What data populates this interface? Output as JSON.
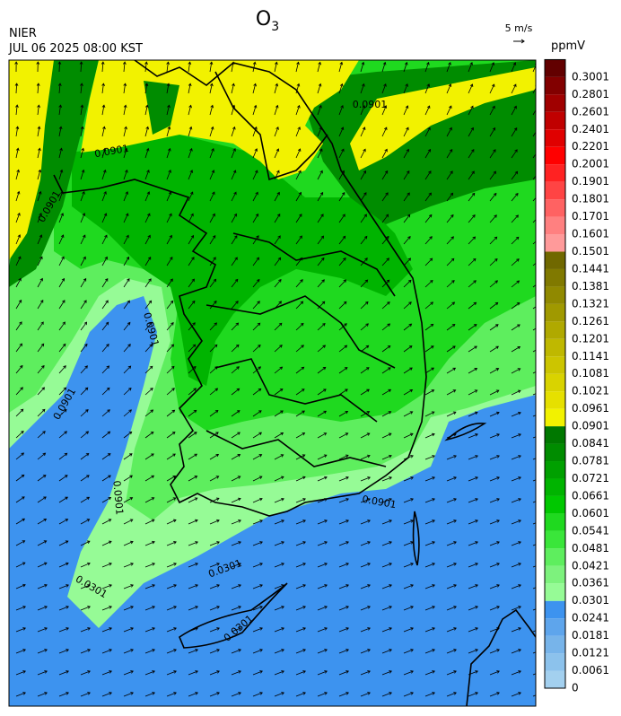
{
  "header": {
    "title": {
      "main": "O",
      "sub": "3"
    },
    "agency": "NIER",
    "datetime": "JUL 06 2025 08:00 KST"
  },
  "wind_key": {
    "label": "5 m/s"
  },
  "colorbar": {
    "unit": "ppmV",
    "levels": [
      {
        "label": "0",
        "color": "#a3d0ef"
      },
      {
        "label": "0.0061",
        "color": "#8cc2ec"
      },
      {
        "label": "0.0121",
        "color": "#77b4ea"
      },
      {
        "label": "0.0181",
        "color": "#5ea5ec"
      },
      {
        "label": "0.0241",
        "color": "#3d93ef"
      },
      {
        "label": "0.0301",
        "color": "#96fb96"
      },
      {
        "label": "0.0361",
        "color": "#7df27d"
      },
      {
        "label": "0.0421",
        "color": "#5eee5e"
      },
      {
        "label": "0.0481",
        "color": "#3ae63a"
      },
      {
        "label": "0.0541",
        "color": "#1fd91f"
      },
      {
        "label": "0.0601",
        "color": "#00c800"
      },
      {
        "label": "0.0661",
        "color": "#00b400"
      },
      {
        "label": "0.0721",
        "color": "#00a000"
      },
      {
        "label": "0.0781",
        "color": "#008c00"
      },
      {
        "label": "0.0841",
        "color": "#007800"
      },
      {
        "label": "0.0901",
        "color": "#f2f200"
      },
      {
        "label": "0.0961",
        "color": "#e6e000"
      },
      {
        "label": "0.1021",
        "color": "#d9d300"
      },
      {
        "label": "0.1081",
        "color": "#ccc500"
      },
      {
        "label": "0.1141",
        "color": "#bfb800"
      },
      {
        "label": "0.1201",
        "color": "#b0a900"
      },
      {
        "label": "0.1261",
        "color": "#a09900"
      },
      {
        "label": "0.1321",
        "color": "#908900"
      },
      {
        "label": "0.1381",
        "color": "#807900"
      },
      {
        "label": "0.1441",
        "color": "#706800"
      },
      {
        "label": "0.1501",
        "color": "#ff9a9a"
      },
      {
        "label": "0.1601",
        "color": "#ff8080"
      },
      {
        "label": "0.1701",
        "color": "#ff6262"
      },
      {
        "label": "0.1801",
        "color": "#ff4444"
      },
      {
        "label": "0.1901",
        "color": "#ff2222"
      },
      {
        "label": "0.2001",
        "color": "#ff0000"
      },
      {
        "label": "0.2201",
        "color": "#e00000"
      },
      {
        "label": "0.2401",
        "color": "#c00000"
      },
      {
        "label": "0.2601",
        "color": "#a00000"
      },
      {
        "label": "0.2801",
        "color": "#820000"
      },
      {
        "label": "0.3001",
        "color": "#620000"
      }
    ]
  },
  "contour_labels": [
    "0.0901",
    "0.0901",
    "0.0901",
    "0.0901",
    "0.0901",
    "0.0901",
    "0.0901",
    "0.0301",
    "0.0301",
    "0.0301"
  ]
}
